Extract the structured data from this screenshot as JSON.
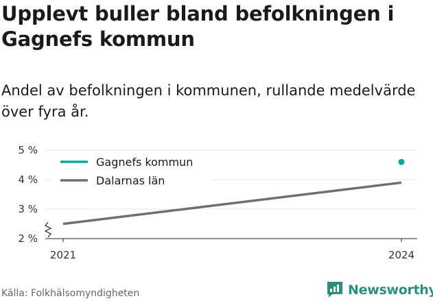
{
  "title": "Upplevt buller bland befolkningen i Gagnefs kommun",
  "subtitle": "Andel av befolkningen i kommunen, rullande medelvärde över fyra år.",
  "source": "Källa: Folkhälsomyndigheten",
  "brand": {
    "name": "Newsworthy",
    "icon": "newsworthy-logo-icon",
    "color": "#2b8f7a"
  },
  "chart_data": {
    "type": "line",
    "x": [
      2021,
      2024
    ],
    "xticks": [
      "2021",
      "2024"
    ],
    "yticks": [
      "2 %",
      "3 %",
      "4 %",
      "5 %"
    ],
    "ylim": [
      2,
      5
    ],
    "y_axis_break": true,
    "grid": "horizontal",
    "legend_position": "top-left",
    "series": [
      {
        "name": "Gagnefs kommun",
        "color": "#12a39a",
        "style": "point",
        "x": [
          2024
        ],
        "values": [
          4.6
        ]
      },
      {
        "name": "Dalarnas län",
        "color": "#6e6e73",
        "style": "line",
        "x": [
          2021,
          2024
        ],
        "values": [
          2.5,
          3.9
        ]
      }
    ]
  }
}
